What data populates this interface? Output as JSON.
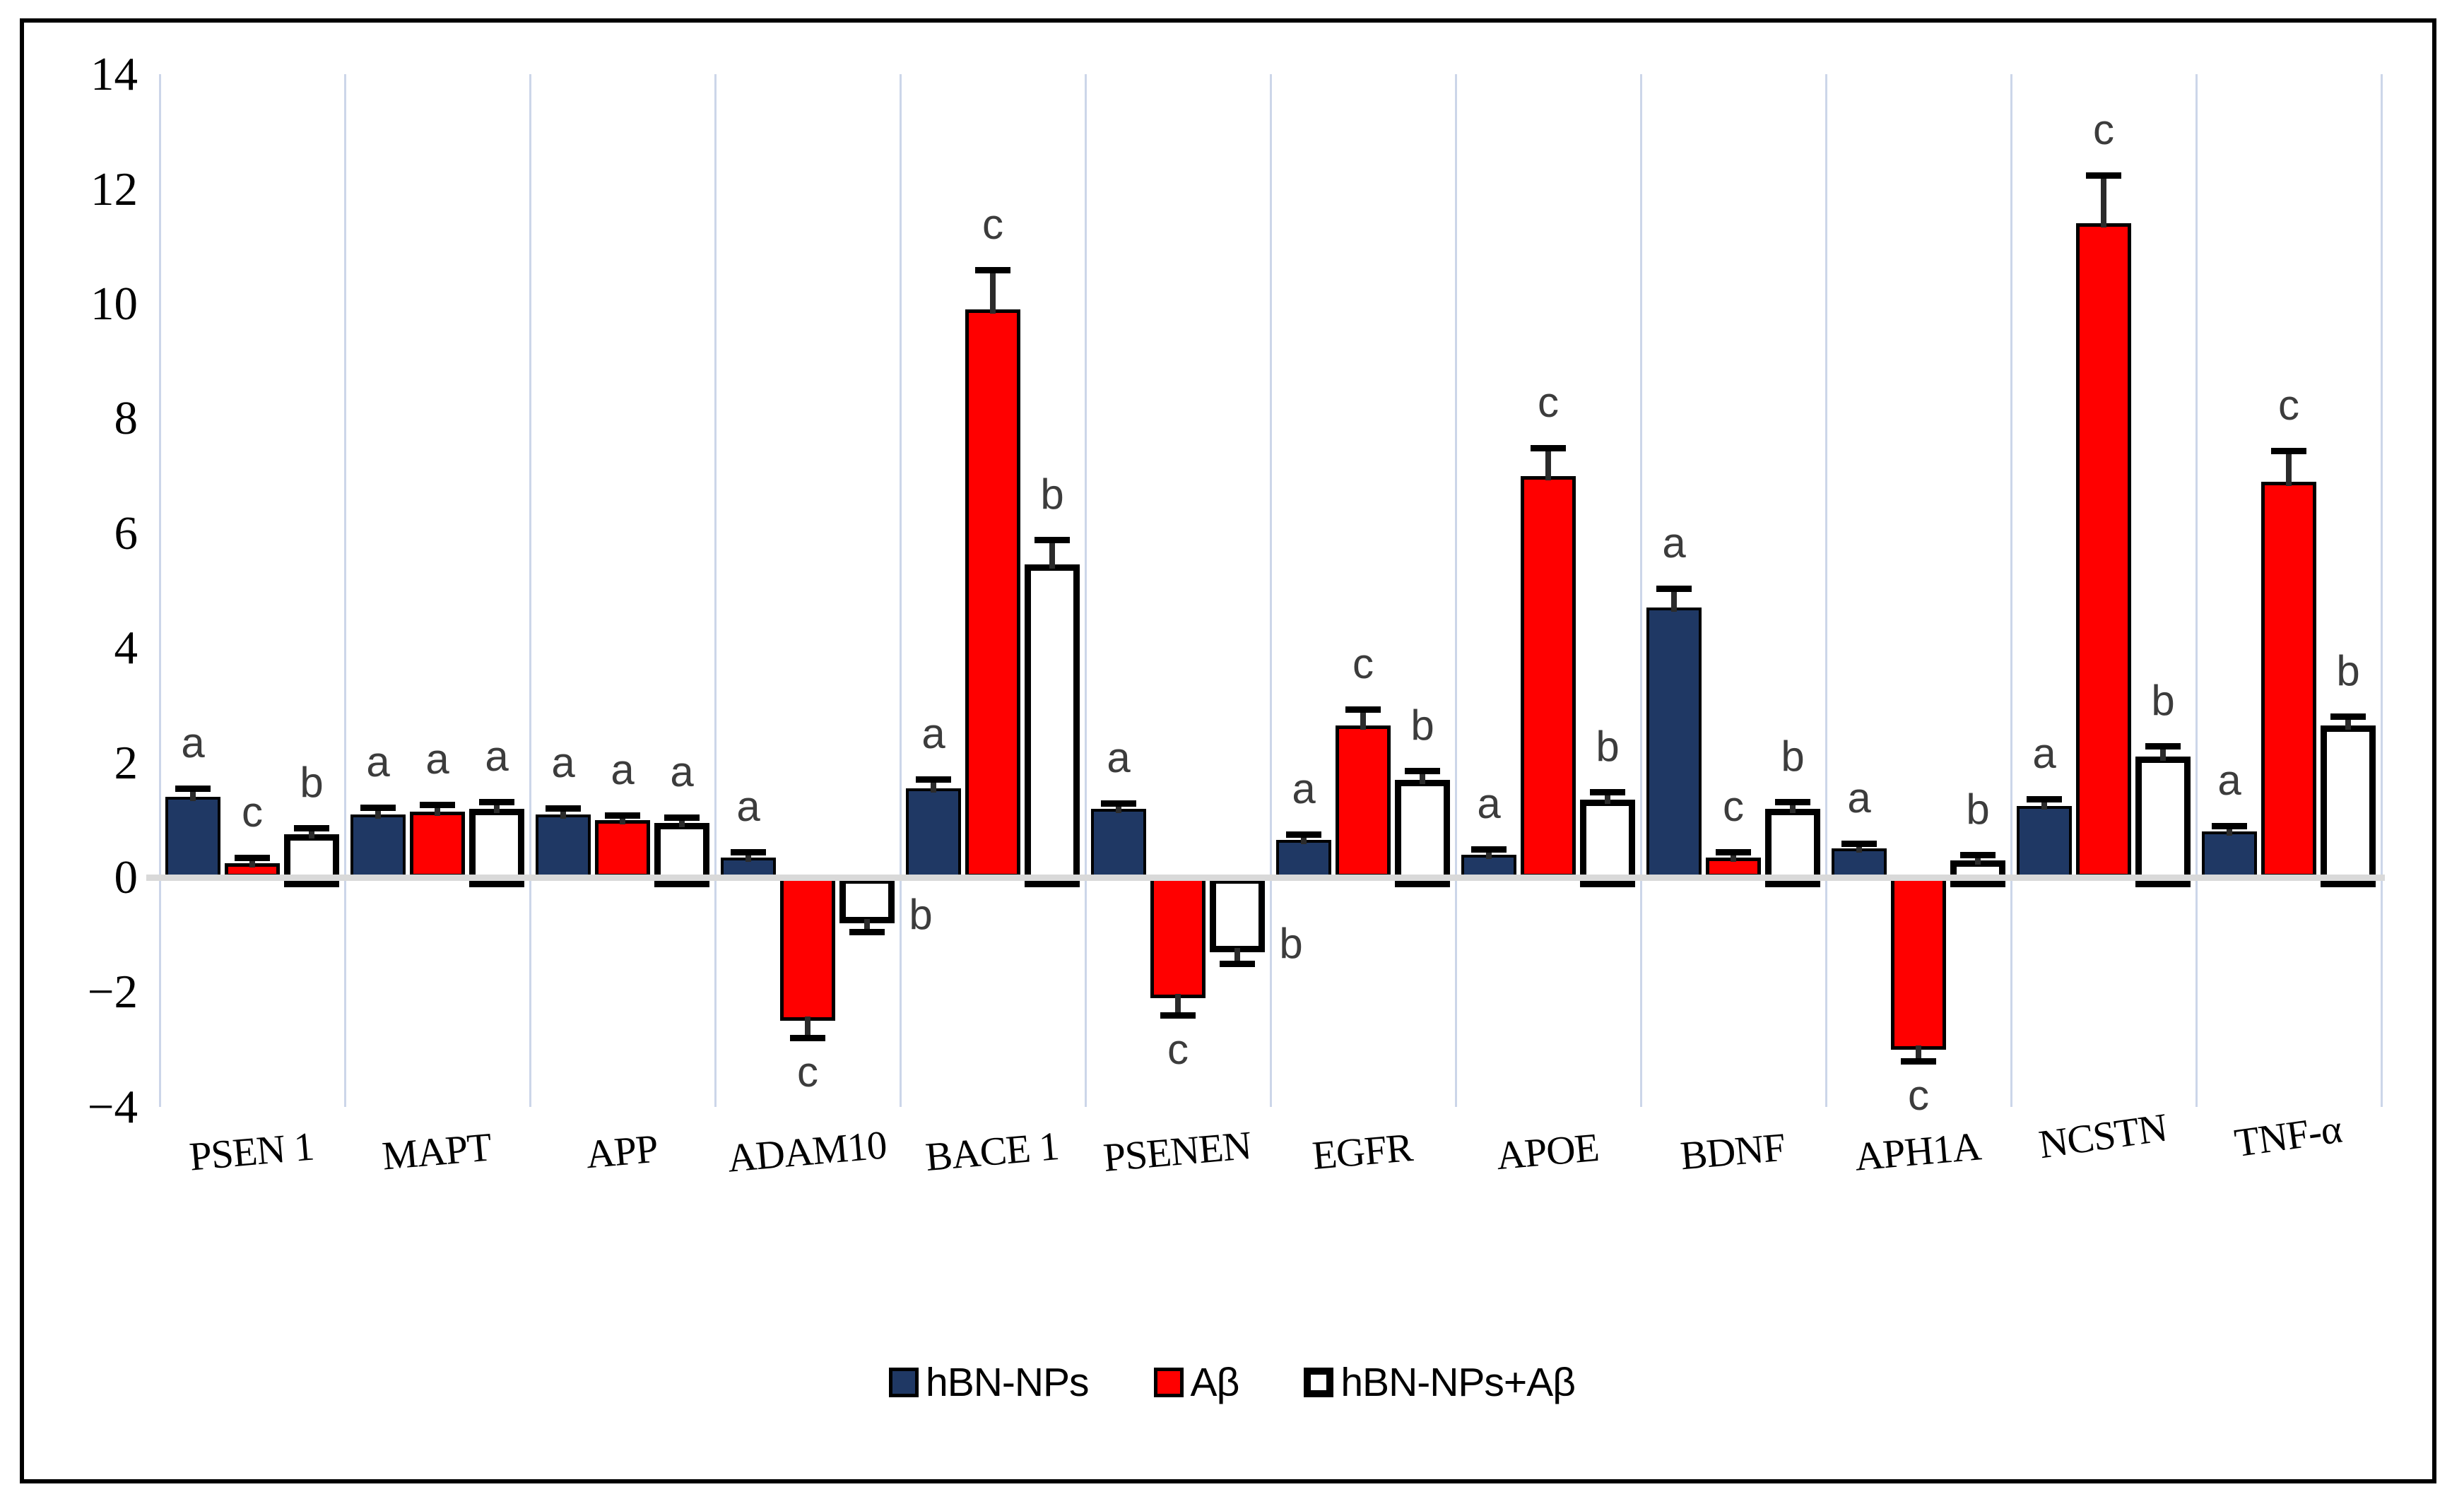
{
  "figure": {
    "background_color": "#FFFFFF",
    "frame_color": "#000000"
  },
  "chart_data": {
    "type": "bar",
    "title": "",
    "xlabel": "",
    "ylabel": "",
    "categories": [
      "PSEN 1",
      "MAPT",
      "APP",
      "ADAM10",
      "BACE 1",
      "PSENEN",
      "EGFR",
      "APOE",
      "BDNF",
      "APH1A",
      "NCSTN",
      "TNF-α"
    ],
    "series": [
      {
        "name": "hBN-NPs",
        "color": "#1F3864",
        "values": [
          1.4,
          1.1,
          1.1,
          0.35,
          1.55,
          1.2,
          0.65,
          0.4,
          4.7,
          0.5,
          1.25,
          0.8
        ],
        "errors": [
          0.12,
          0.08,
          0.07,
          0.06,
          0.12,
          0.06,
          0.07,
          0.06,
          0.3,
          0.06,
          0.08,
          0.06
        ],
        "letters": [
          "a",
          "a",
          "a",
          "a",
          "a",
          "a",
          "a",
          "a",
          "a",
          "a",
          "a",
          "a"
        ]
      },
      {
        "name": "Aβ",
        "color": "#FF0000",
        "values": [
          0.25,
          1.15,
          1.0,
          -2.5,
          9.9,
          -2.1,
          2.65,
          7.0,
          0.35,
          -3.0,
          11.4,
          6.9
        ],
        "errors": [
          0.06,
          0.08,
          0.05,
          0.25,
          0.65,
          0.25,
          0.25,
          0.45,
          0.06,
          0.15,
          0.8,
          0.5
        ],
        "letters": [
          "c",
          "a",
          "a",
          "c",
          "c",
          "c",
          "c",
          "c",
          "c",
          "c",
          "c",
          "c"
        ]
      },
      {
        "name": "hBN-NPs+Aβ",
        "color": "#FFFFFF",
        "values": [
          0.75,
          1.2,
          0.95,
          -0.8,
          5.45,
          -1.3,
          1.7,
          1.35,
          1.2,
          0.3,
          2.1,
          2.65
        ],
        "errors": [
          0.08,
          0.08,
          0.06,
          0.1,
          0.4,
          0.15,
          0.12,
          0.1,
          0.08,
          0.06,
          0.15,
          0.12
        ],
        "letters": [
          "b",
          "a",
          "a",
          "b",
          "b",
          "b",
          "b",
          "b",
          "b",
          "b",
          "b",
          "b"
        ]
      }
    ],
    "ylim": [
      -4,
      14
    ],
    "ytick_step": 2,
    "ytick_labels": [
      "14",
      "12",
      "10",
      "8",
      "6",
      "4",
      "2",
      "0",
      "−2",
      "−4"
    ],
    "grid": "vertical light-blue category separators",
    "legend_position": "bottom-center",
    "annotation_note_colors": {
      "gridline": "#CCD6E9",
      "zero_line": "#D9D9D9",
      "significance_letter": "#3C3C3C",
      "error_bar": "#000000"
    }
  },
  "legend": {
    "items": [
      {
        "label": "hBN-NPs",
        "color": "#1F3864"
      },
      {
        "label": "Aβ",
        "color": "#FF0000"
      },
      {
        "label": "hBN-NPs+Aβ",
        "color": "#FFFFFF"
      }
    ]
  }
}
